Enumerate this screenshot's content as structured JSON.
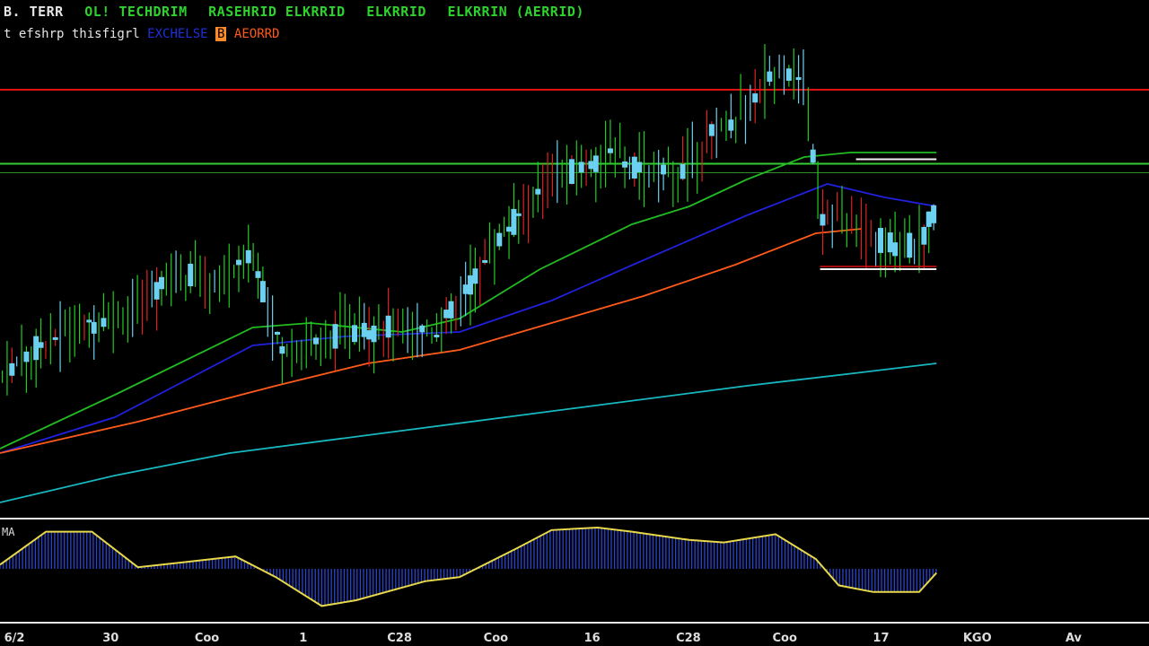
{
  "header": {
    "symbol": "B. TERR",
    "indicators": [
      {
        "label": "OL! TECHDRIM",
        "color": "#2fd12f"
      },
      {
        "label": "RASEHRID ELKRRID",
        "color": "#2fd12f"
      },
      {
        "label": "ELKRRID",
        "color": "#2fd12f"
      },
      {
        "label": "ELKRRIN (AERRID)",
        "color": "#2fd12f"
      }
    ],
    "subtitle": "t efshrp thisfigrl",
    "legend": [
      {
        "label": "EXCHELSE",
        "color": "#1e2fd8"
      },
      {
        "label": "B",
        "color": "#ff8a2a"
      },
      {
        "label": "AEORRD",
        "color": "#ff5a1a"
      }
    ]
  },
  "oscillator": {
    "label": "MA"
  },
  "colors": {
    "background": "#000000",
    "bull": "#22cc22",
    "bear": "#dd2222",
    "candle_body": "#6cd0f0",
    "ma_fast": "#22bb22",
    "ma_mid": "#2020dd",
    "ma_slow": "#ff5a1a",
    "ma_long": "#18b8c0",
    "resistance": "#dd1111",
    "support": "#33cc33",
    "osc_line": "#e8d84a",
    "osc_hist": "#2a44cc"
  },
  "chart_data": {
    "type": "candlestick",
    "x_ticks": [
      "6/2",
      "30",
      "Coo",
      "1",
      "C28",
      "Coo",
      "16",
      "C28",
      "Coo",
      "17",
      "KGO",
      "Av"
    ],
    "horizontal_lines": [
      {
        "name": "resistance",
        "value": 0.92
      },
      {
        "name": "support",
        "value": 0.755
      },
      {
        "name": "support-2",
        "value": 0.735
      }
    ],
    "box": {
      "start": 0.745,
      "end": 0.815,
      "top": 0.765,
      "bottom": 0.52
    },
    "price_trend": [
      [
        0.0,
        0.28
      ],
      [
        0.04,
        0.36
      ],
      [
        0.08,
        0.4
      ],
      [
        0.12,
        0.43
      ],
      [
        0.15,
        0.52
      ],
      [
        0.19,
        0.49
      ],
      [
        0.22,
        0.55
      ],
      [
        0.245,
        0.34
      ],
      [
        0.27,
        0.35
      ],
      [
        0.3,
        0.38
      ],
      [
        0.34,
        0.39
      ],
      [
        0.38,
        0.38
      ],
      [
        0.4,
        0.45
      ],
      [
        0.43,
        0.57
      ],
      [
        0.47,
        0.7
      ],
      [
        0.5,
        0.74
      ],
      [
        0.53,
        0.78
      ],
      [
        0.56,
        0.74
      ],
      [
        0.59,
        0.73
      ],
      [
        0.62,
        0.82
      ],
      [
        0.65,
        0.88
      ],
      [
        0.68,
        0.98
      ],
      [
        0.7,
        0.93
      ],
      [
        0.715,
        0.64
      ],
      [
        0.74,
        0.62
      ],
      [
        0.77,
        0.58
      ],
      [
        0.8,
        0.57
      ],
      [
        0.815,
        0.66
      ]
    ],
    "moving_averages": [
      {
        "name": "MA fast",
        "points": [
          [
            0.0,
            0.12
          ],
          [
            0.1,
            0.24
          ],
          [
            0.22,
            0.39
          ],
          [
            0.27,
            0.4
          ],
          [
            0.35,
            0.38
          ],
          [
            0.4,
            0.41
          ],
          [
            0.47,
            0.52
          ],
          [
            0.55,
            0.62
          ],
          [
            0.6,
            0.66
          ],
          [
            0.65,
            0.72
          ],
          [
            0.7,
            0.77
          ],
          [
            0.74,
            0.78
          ],
          [
            0.815,
            0.78
          ]
        ]
      },
      {
        "name": "MA mid",
        "points": [
          [
            0.0,
            0.11
          ],
          [
            0.1,
            0.19
          ],
          [
            0.22,
            0.35
          ],
          [
            0.3,
            0.37
          ],
          [
            0.4,
            0.38
          ],
          [
            0.48,
            0.45
          ],
          [
            0.56,
            0.54
          ],
          [
            0.65,
            0.64
          ],
          [
            0.72,
            0.71
          ],
          [
            0.77,
            0.68
          ],
          [
            0.815,
            0.66
          ]
        ]
      },
      {
        "name": "MA slow",
        "points": [
          [
            0.0,
            0.11
          ],
          [
            0.12,
            0.18
          ],
          [
            0.24,
            0.26
          ],
          [
            0.32,
            0.31
          ],
          [
            0.4,
            0.34
          ],
          [
            0.48,
            0.4
          ],
          [
            0.56,
            0.46
          ],
          [
            0.64,
            0.53
          ],
          [
            0.71,
            0.6
          ],
          [
            0.75,
            0.61
          ]
        ]
      },
      {
        "name": "MA long",
        "points": [
          [
            0.0,
            0.0
          ],
          [
            0.1,
            0.06
          ],
          [
            0.2,
            0.11
          ],
          [
            0.35,
            0.16
          ],
          [
            0.5,
            0.21
          ],
          [
            0.65,
            0.26
          ],
          [
            0.75,
            0.29
          ],
          [
            0.815,
            0.31
          ]
        ]
      }
    ],
    "oscillator": {
      "zero": 0.5,
      "points": [
        [
          0.0,
          0.55
        ],
        [
          0.04,
          0.95
        ],
        [
          0.08,
          0.95
        ],
        [
          0.12,
          0.52
        ],
        [
          0.16,
          0.58
        ],
        [
          0.205,
          0.65
        ],
        [
          0.24,
          0.4
        ],
        [
          0.28,
          0.05
        ],
        [
          0.31,
          0.12
        ],
        [
          0.37,
          0.35
        ],
        [
          0.4,
          0.4
        ],
        [
          0.45,
          0.75
        ],
        [
          0.48,
          0.97
        ],
        [
          0.52,
          1.0
        ],
        [
          0.55,
          0.95
        ],
        [
          0.6,
          0.85
        ],
        [
          0.63,
          0.82
        ],
        [
          0.675,
          0.92
        ],
        [
          0.71,
          0.62
        ],
        [
          0.73,
          0.3
        ],
        [
          0.76,
          0.22
        ],
        [
          0.8,
          0.22
        ],
        [
          0.815,
          0.45
        ]
      ]
    }
  }
}
